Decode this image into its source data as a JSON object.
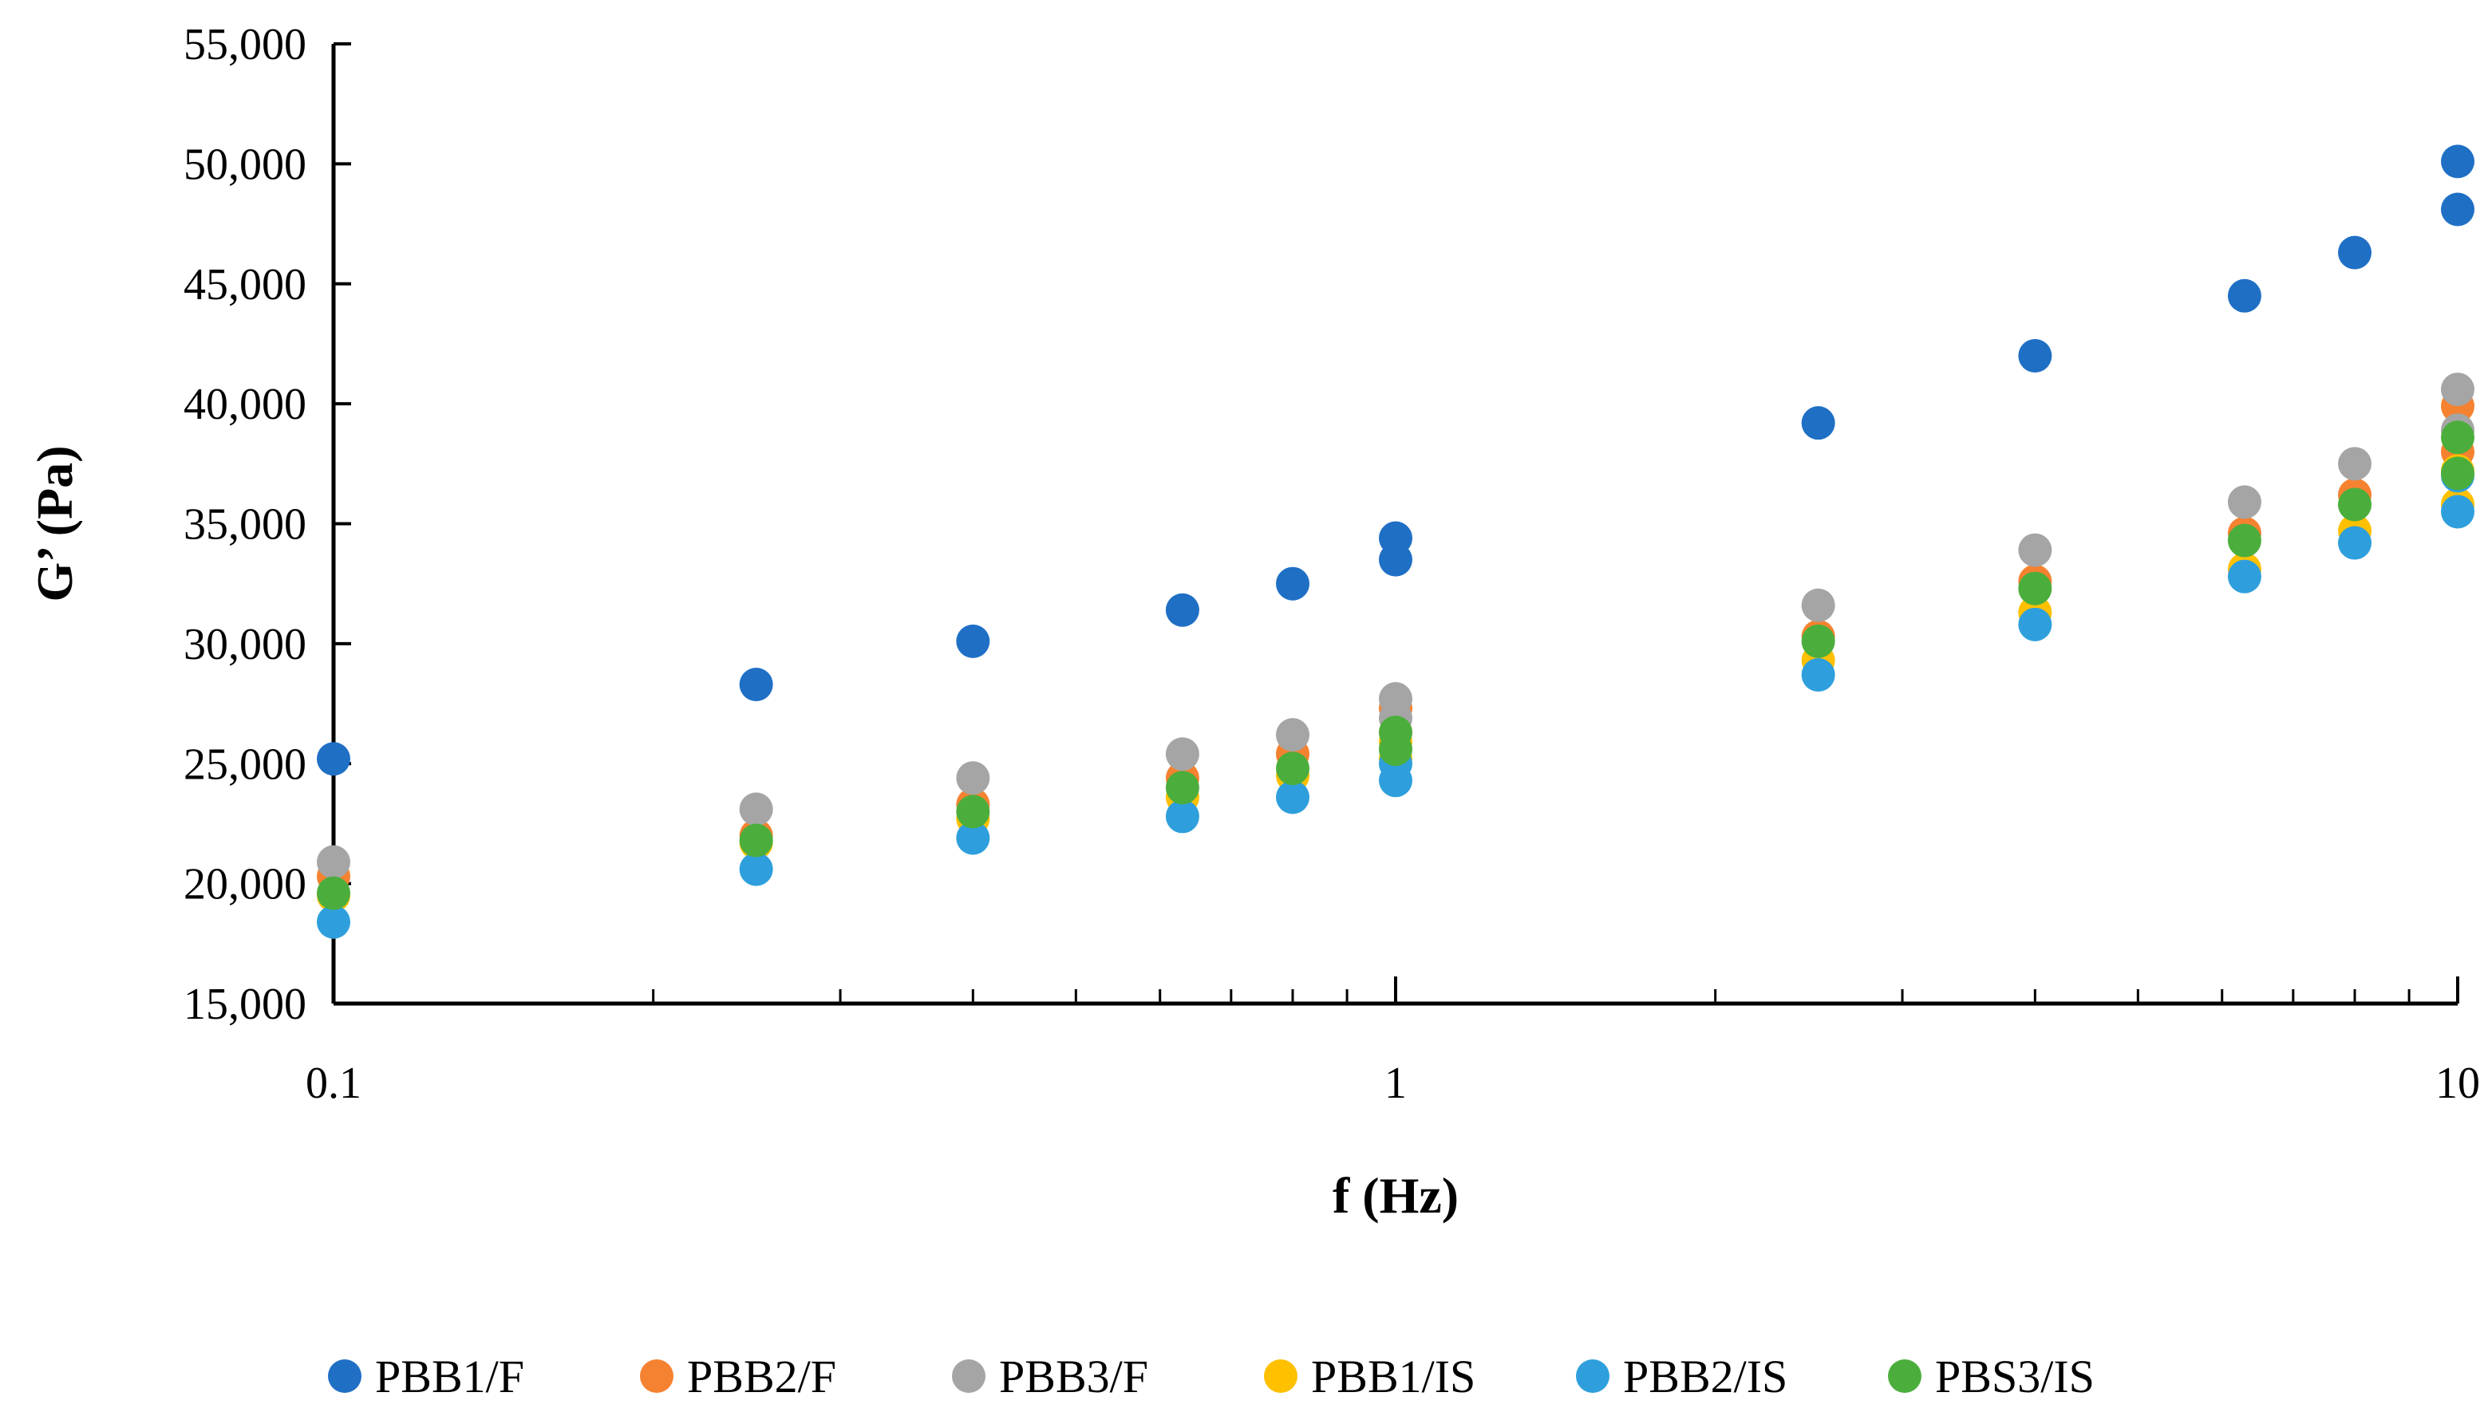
{
  "chart_data": {
    "type": "scatter",
    "xlabel": "f (Hz)",
    "ylabel": "G’ (Pa)",
    "x_scale": "log",
    "xlim": [
      0.1,
      10
    ],
    "ylim": [
      15000,
      55000
    ],
    "x_tick_values": [
      0.1,
      1,
      10
    ],
    "x_tick_labels": [
      "0.1",
      "1",
      "10"
    ],
    "y_tick_values": [
      15000,
      20000,
      25000,
      30000,
      35000,
      40000,
      45000,
      50000,
      55000
    ],
    "y_tick_labels": [
      "15,000",
      "20,000",
      "25,000",
      "30,000",
      "35,000",
      "40,000",
      "45,000",
      "50,000",
      "55,000"
    ],
    "grid": false,
    "legend_position": "bottom",
    "x": [
      0.1,
      0.25,
      0.4,
      0.63,
      0.8,
      1,
      2.5,
      4,
      6.3,
      8,
      10
    ],
    "series": [
      {
        "name": "PBB1/F",
        "color": "#1F6FC5",
        "values": [
          25200,
          28300,
          30100,
          31400,
          32500,
          33500,
          34400,
          39200,
          42000,
          44500,
          46300,
          48100,
          50100
        ]
      },
      {
        "name": "PBB2/F",
        "color": "#F58230",
        "values": [
          20300,
          22000,
          23300,
          24400,
          25400,
          26300,
          27300,
          30300,
          32600,
          34600,
          36200,
          38000,
          39900
        ]
      },
      {
        "name": "PBB3/F",
        "color": "#A5A5A5",
        "values": [
          20900,
          23100,
          24400,
          25400,
          26200,
          26900,
          27700,
          31600,
          33900,
          35900,
          37500,
          38900,
          40600
        ]
      },
      {
        "name": "PBB1/IS",
        "color": "#FFC000",
        "values": [
          19500,
          21700,
          22700,
          23600,
          24500,
          25200,
          25900,
          29300,
          31300,
          33100,
          34700,
          35800,
          37200
        ]
      },
      {
        "name": "PBB2/IS",
        "color": "#2E9FDC",
        "values": [
          18400,
          20600,
          21900,
          22800,
          23600,
          24300,
          25000,
          28700,
          30800,
          32800,
          34200,
          35500,
          37000
        ]
      },
      {
        "name": "PBS3/IS",
        "color": "#4BAE3C",
        "values": [
          19600,
          21800,
          23000,
          24000,
          24800,
          25600,
          26300,
          30100,
          32300,
          34300,
          35800,
          37100,
          38600
        ]
      }
    ],
    "x_values": [
      0.1,
      0.25,
      0.4,
      0.63,
      0.8,
      1,
      1,
      2.5,
      4,
      6.3,
      8,
      10,
      10
    ]
  }
}
